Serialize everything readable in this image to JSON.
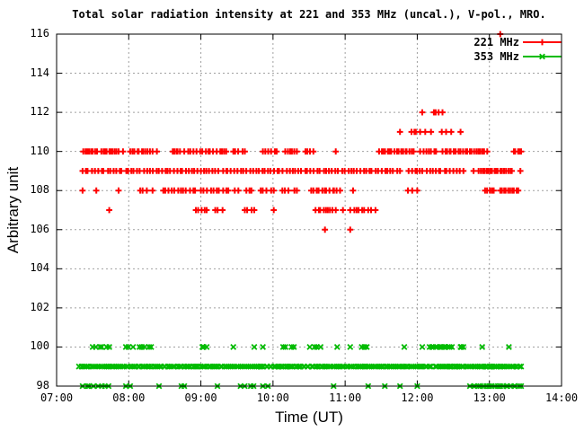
{
  "title": "Total solar radiation intensity at 221 and 353 MHz (uncal.), V-pol., MRO.",
  "x_axis": {
    "label": "Time (UT)",
    "ticks": [
      {
        "t": 7,
        "label": "07:00"
      },
      {
        "t": 8,
        "label": "08:00"
      },
      {
        "t": 9,
        "label": "09:00"
      },
      {
        "t": 10,
        "label": "10:00"
      },
      {
        "t": 11,
        "label": "11:00"
      },
      {
        "t": 12,
        "label": "12:00"
      },
      {
        "t": 13,
        "label": "13:00"
      },
      {
        "t": 14,
        "label": "14:00"
      }
    ]
  },
  "y_axis": {
    "label": "Arbitrary unit",
    "ticks": [
      {
        "v": 98,
        "label": "98"
      },
      {
        "v": 100,
        "label": "100"
      },
      {
        "v": 102,
        "label": "102"
      },
      {
        "v": 104,
        "label": "104"
      },
      {
        "v": 106,
        "label": "106"
      },
      {
        "v": 108,
        "label": "108"
      },
      {
        "v": 110,
        "label": "110"
      },
      {
        "v": 112,
        "label": "112"
      },
      {
        "v": 114,
        "label": "114"
      },
      {
        "v": 116,
        "label": "116"
      }
    ]
  },
  "legend": {
    "position": "top-right-inside",
    "items": [
      {
        "label": "221 MHz",
        "color": "#ff0000",
        "marker": "plus"
      },
      {
        "label": "353 MHz",
        "color": "#00bb00",
        "marker": "x"
      }
    ]
  },
  "colors": {
    "grid": "#a0a0a0",
    "border": "#000000",
    "red": "#ff0000",
    "green": "#00bb00"
  },
  "chart_data": {
    "type": "scatter",
    "title": "Total solar radiation intensity at 221 and 353 MHz (uncal.), V-pol., MRO.",
    "xlabel": "Time (UT)",
    "ylabel": "Arbitrary unit",
    "xlim": [
      7,
      14
    ],
    "ylim": [
      98,
      116
    ],
    "grid": true,
    "x_unit": "decimal hours UT",
    "runs_format": "[y_value, t_start_hours, t_end_hours, n_points]",
    "points_format": "[t_hours, y_value]",
    "series": [
      {
        "name": "221 MHz",
        "color": "#ff0000",
        "marker": "plus",
        "runs": [
          [
            112,
            12.23,
            12.35,
            4
          ],
          [
            111,
            11.92,
            11.98,
            3
          ],
          [
            110,
            7.37,
            7.56,
            8
          ],
          [
            110,
            7.62,
            7.86,
            10
          ],
          [
            110,
            8.02,
            8.33,
            11
          ],
          [
            110,
            8.61,
            8.71,
            5
          ],
          [
            110,
            8.77,
            9.22,
            12
          ],
          [
            110,
            9.27,
            9.35,
            4
          ],
          [
            110,
            9.45,
            9.61,
            5
          ],
          [
            110,
            9.86,
            10.05,
            6
          ],
          [
            110,
            10.17,
            10.33,
            6
          ],
          [
            110,
            10.45,
            10.56,
            4
          ],
          [
            110,
            11.47,
            11.95,
            17
          ],
          [
            110,
            12.04,
            12.26,
            7
          ],
          [
            110,
            12.35,
            12.97,
            21
          ],
          [
            110,
            13.34,
            13.44,
            5
          ],
          [
            109,
            7.36,
            10.35,
            72
          ],
          [
            109,
            10.35,
            11.76,
            34
          ],
          [
            109,
            11.88,
            12.45,
            15
          ],
          [
            109,
            12.5,
            12.64,
            4
          ],
          [
            109,
            12.85,
            13.31,
            18
          ],
          [
            108,
            8.16,
            8.25,
            3
          ],
          [
            108,
            8.48,
            8.79,
            9
          ],
          [
            108,
            8.85,
            8.92,
            3
          ],
          [
            108,
            9.0,
            9.38,
            10
          ],
          [
            108,
            9.47,
            9.52,
            2
          ],
          [
            108,
            9.63,
            9.7,
            3
          ],
          [
            108,
            9.83,
            10.01,
            5
          ],
          [
            108,
            10.13,
            10.33,
            5
          ],
          [
            108,
            10.53,
            10.93,
            12
          ],
          [
            108,
            11.87,
            11.93,
            2
          ],
          [
            108,
            12.94,
            13.06,
            5
          ],
          [
            108,
            13.15,
            13.4,
            10
          ],
          [
            107,
            8.93,
            9.08,
            5
          ],
          [
            107,
            9.2,
            9.3,
            3
          ],
          [
            107,
            9.61,
            9.74,
            4
          ],
          [
            107,
            10.59,
            10.87,
            9
          ],
          [
            107,
            11.07,
            11.36,
            8
          ]
        ],
        "points": [
          [
            13.15,
            116
          ],
          [
            12.07,
            112
          ],
          [
            11.76,
            111
          ],
          [
            12.04,
            111
          ],
          [
            12.11,
            111
          ],
          [
            12.19,
            111
          ],
          [
            12.34,
            111
          ],
          [
            12.4,
            111
          ],
          [
            12.47,
            111
          ],
          [
            12.6,
            111
          ],
          [
            7.92,
            110
          ],
          [
            8.39,
            110
          ],
          [
            10.87,
            110
          ],
          [
            12.78,
            109
          ],
          [
            13.43,
            109
          ],
          [
            7.36,
            108
          ],
          [
            7.55,
            108
          ],
          [
            7.86,
            108
          ],
          [
            8.33,
            108
          ],
          [
            11.11,
            108
          ],
          [
            12.0,
            108
          ],
          [
            7.73,
            107
          ],
          [
            10.01,
            107
          ],
          [
            10.97,
            107
          ],
          [
            11.42,
            107
          ],
          [
            10.72,
            106
          ],
          [
            11.07,
            106
          ]
        ]
      },
      {
        "name": "353 MHz",
        "color": "#00bb00",
        "marker": "x",
        "runs": [
          [
            100,
            7.5,
            7.73,
            6
          ],
          [
            100,
            7.96,
            8.06,
            3
          ],
          [
            100,
            8.15,
            8.31,
            5
          ],
          [
            100,
            9.02,
            9.08,
            3
          ],
          [
            100,
            10.14,
            10.29,
            4
          ],
          [
            100,
            10.51,
            10.66,
            4
          ],
          [
            100,
            11.23,
            11.3,
            3
          ],
          [
            100,
            12.17,
            12.48,
            12
          ],
          [
            100,
            12.6,
            12.64,
            3
          ],
          [
            99,
            7.31,
            12.19,
            180
          ],
          [
            99,
            12.25,
            13.44,
            46
          ],
          [
            98,
            7.36,
            7.72,
            8
          ],
          [
            98,
            7.96,
            8.02,
            2
          ],
          [
            98,
            8.73,
            8.77,
            2
          ],
          [
            98,
            9.55,
            9.73,
            4
          ],
          [
            98,
            9.86,
            9.93,
            2
          ],
          [
            98,
            12.73,
            13.15,
            12
          ],
          [
            98,
            13.19,
            13.44,
            8
          ]
        ],
        "points": [
          [
            9.45,
            100
          ],
          [
            9.74,
            100
          ],
          [
            9.86,
            100
          ],
          [
            10.89,
            100
          ],
          [
            11.07,
            100
          ],
          [
            11.82,
            100
          ],
          [
            12.07,
            100
          ],
          [
            12.9,
            100
          ],
          [
            13.27,
            100
          ],
          [
            8.42,
            98
          ],
          [
            9.23,
            98
          ],
          [
            10.84,
            98
          ],
          [
            11.32,
            98
          ],
          [
            11.55,
            98
          ],
          [
            11.76,
            98
          ],
          [
            12.0,
            98
          ]
        ]
      }
    ]
  }
}
